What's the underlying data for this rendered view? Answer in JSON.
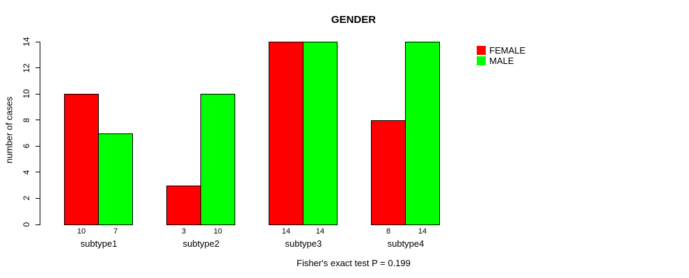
{
  "chart_data": {
    "type": "bar",
    "title": "GENDER",
    "ylabel": "number of cases",
    "xlabel": "",
    "categories": [
      "subtype1",
      "subtype2",
      "subtype3",
      "subtype4"
    ],
    "series": [
      {
        "name": "FEMALE",
        "color": "#ff0000",
        "values": [
          10,
          3,
          14,
          8
        ]
      },
      {
        "name": "MALE",
        "color": "#00ff00",
        "values": [
          7,
          10,
          14,
          14
        ]
      }
    ],
    "bar_value_labels": [
      [
        "10",
        "7"
      ],
      [
        "3",
        "10"
      ],
      [
        "14",
        "14"
      ],
      [
        "8",
        "14"
      ]
    ],
    "ylim": [
      0,
      14
    ],
    "yticks": [
      0,
      2,
      4,
      6,
      8,
      10,
      12,
      14
    ],
    "grid": false,
    "legend_position": "top-right",
    "note": "Fisher's exact test P = 0.199"
  }
}
